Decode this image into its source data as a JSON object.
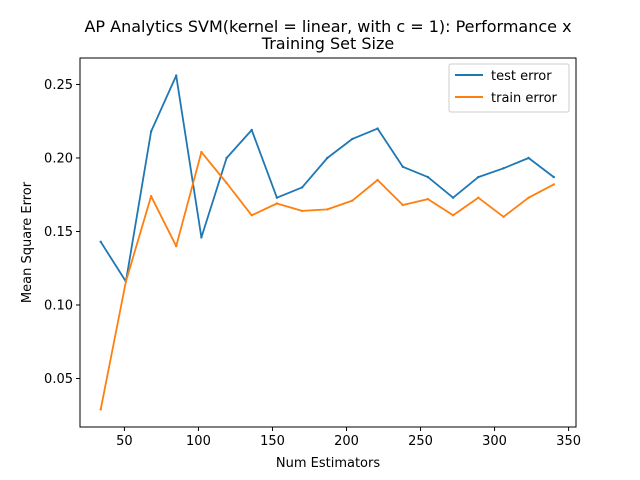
{
  "chart_data": {
    "type": "line",
    "title_lines": [
      "AP Analytics SVM(kernel = linear, with c = 1): Performance x",
      "Training Set Size"
    ],
    "xlabel": "Num Estimators",
    "ylabel": "Mean Square Error",
    "xlim": [
      20,
      355
    ],
    "ylim": [
      0.017,
      0.268
    ],
    "xticks": [
      50,
      100,
      150,
      200,
      250,
      300,
      350
    ],
    "yticks": [
      0.05,
      0.1,
      0.15,
      0.2,
      0.25
    ],
    "xtick_labels": [
      "50",
      "100",
      "150",
      "200",
      "250",
      "300",
      "350"
    ],
    "ytick_labels": [
      "0.05",
      "0.10",
      "0.15",
      "0.20",
      "0.25"
    ],
    "grid": false,
    "legend_position": "top-right",
    "x": [
      34,
      51,
      68,
      85,
      102,
      119,
      136,
      153,
      170,
      187,
      204,
      221,
      238,
      255,
      272,
      289,
      306,
      323,
      340
    ],
    "series": [
      {
        "name": "test error",
        "color": "#1f77b4",
        "values": [
          0.143,
          0.116,
          0.218,
          0.256,
          0.146,
          0.2,
          0.219,
          0.173,
          0.18,
          0.2,
          0.213,
          0.22,
          0.194,
          0.187,
          0.173,
          0.187,
          0.193,
          0.2,
          0.187
        ]
      },
      {
        "name": "train error",
        "color": "#ff7f0e",
        "values": [
          0.029,
          0.116,
          0.174,
          0.14,
          0.204,
          0.183,
          0.161,
          0.169,
          0.164,
          0.165,
          0.171,
          0.185,
          0.168,
          0.172,
          0.161,
          0.173,
          0.16,
          0.173,
          0.182
        ]
      }
    ]
  }
}
